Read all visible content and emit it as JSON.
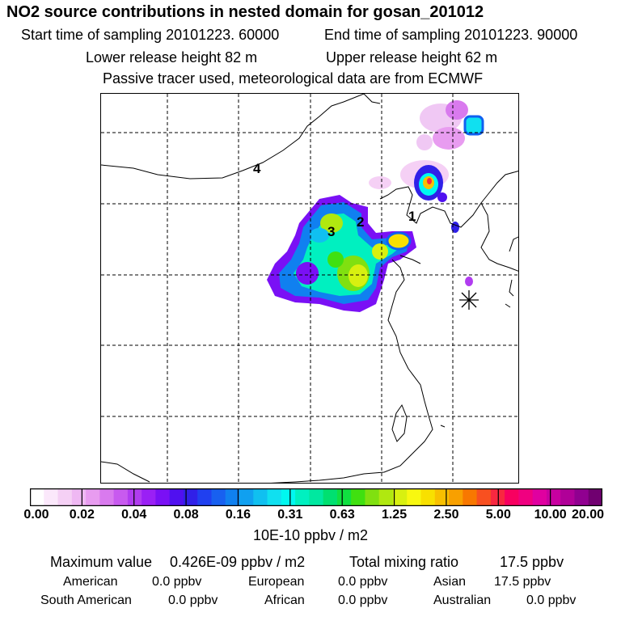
{
  "header": {
    "title": "NO2 source contributions in nested domain for gosan_201012",
    "start_label": "Start time of sampling 20101223. 60000",
    "end_label": "End time of sampling 20101223. 90000",
    "lower_label": "Lower release height   82 m",
    "upper_label": "Upper release height   62 m",
    "tracer_note": "Passive tracer used, meteorological data are from ECMWF"
  },
  "map": {
    "region_labels": [
      "1",
      "2",
      "3",
      "4"
    ],
    "site_marker": "asterisk-icon"
  },
  "colorbar": {
    "tick_labels": [
      "0.00",
      "0.02",
      "0.04",
      "0.08",
      "0.16",
      "0.31",
      "0.63",
      "1.25",
      "2.50",
      "5.00",
      "10.00",
      "20.00"
    ],
    "units": "10E-10 ppbv / m2",
    "colors": [
      "#ffffff",
      "#fbe8fb",
      "#f5d0f5",
      "#efb8f3",
      "#e89cf0",
      "#d97aee",
      "#c85aef",
      "#b13cf0",
      "#9a20f5",
      "#7a10f5",
      "#5010f0",
      "#3020e8",
      "#2040f0",
      "#1860f0",
      "#1080f0",
      "#10a0f0",
      "#10c0f0",
      "#10e0f0",
      "#00f8f0",
      "#00f0c0",
      "#00e8a0",
      "#00e070",
      "#10e040",
      "#40e010",
      "#80e010",
      "#b0e810",
      "#d8f010",
      "#f8f810",
      "#f8e000",
      "#f8c000",
      "#f8a000",
      "#f87800",
      "#f85020",
      "#f82840",
      "#f80060",
      "#f00080",
      "#e000a0",
      "#c800a0",
      "#b00098",
      "#900090",
      "#700070"
    ]
  },
  "summary": {
    "max_label": "Maximum value",
    "max_value": "0.426E-09 ppbv / m2",
    "total_label": "Total mixing ratio",
    "total_value": "17.5 ppbv",
    "contributions": [
      {
        "name": "American",
        "value": "0.0 ppbv"
      },
      {
        "name": "European",
        "value": "0.0 ppbv"
      },
      {
        "name": "Asian",
        "value": "17.5 ppbv"
      },
      {
        "name": "South American",
        "value": "0.0 ppbv"
      },
      {
        "name": "African",
        "value": "0.0 ppbv"
      },
      {
        "name": "Australian",
        "value": "0.0 ppbv"
      }
    ]
  }
}
